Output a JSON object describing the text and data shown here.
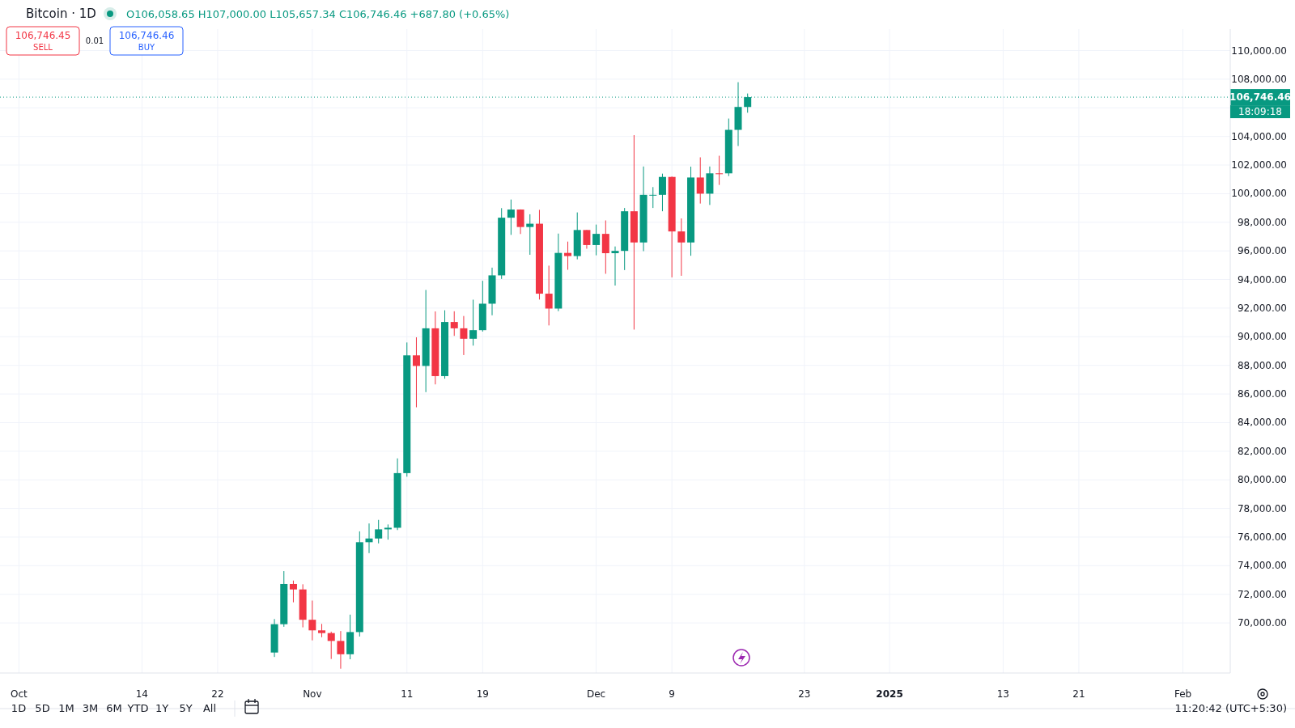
{
  "chart_data": {
    "type": "candlestick",
    "title": "Bitcoin · 1D",
    "subtitle": "O106,058.65 H107,000.00 L105,657.34 C106,746.46 +687.80 (+0.65%)",
    "x": [
      "2024-10-28",
      "2024-10-29",
      "2024-10-30",
      "2024-10-31",
      "2024-11-01",
      "2024-11-02",
      "2024-11-03",
      "2024-11-04",
      "2024-11-05",
      "2024-11-06",
      "2024-11-07",
      "2024-11-08",
      "2024-11-09",
      "2024-11-10",
      "2024-11-11",
      "2024-11-12",
      "2024-11-13",
      "2024-11-14",
      "2024-11-15",
      "2024-11-16",
      "2024-11-17",
      "2024-11-18",
      "2024-11-19",
      "2024-11-20",
      "2024-11-21",
      "2024-11-22",
      "2024-11-23",
      "2024-11-24",
      "2024-11-25",
      "2024-11-26",
      "2024-11-27",
      "2024-11-28",
      "2024-11-29",
      "2024-11-30",
      "2024-12-01",
      "2024-12-02",
      "2024-12-03",
      "2024-12-04",
      "2024-12-05",
      "2024-12-06",
      "2024-12-07",
      "2024-12-08",
      "2024-12-09",
      "2024-12-10",
      "2024-12-11",
      "2024-12-12",
      "2024-12-13",
      "2024-12-14",
      "2024-12-15",
      "2024-12-16",
      "2024-12-17"
    ],
    "ohlc": [
      [
        67930,
        70270,
        67620,
        69910
      ],
      [
        69910,
        73620,
        69730,
        72720
      ],
      [
        72720,
        72960,
        71440,
        72340
      ],
      [
        72340,
        72700,
        69690,
        70220
      ],
      [
        70220,
        71560,
        68780,
        69480
      ],
      [
        69480,
        69930,
        69000,
        69290
      ],
      [
        69290,
        69390,
        67480,
        68740
      ],
      [
        68740,
        69430,
        66800,
        67810
      ],
      [
        67810,
        70580,
        67460,
        69360
      ],
      [
        69360,
        76400,
        69050,
        75640
      ],
      [
        75640,
        76950,
        74880,
        75900
      ],
      [
        75900,
        77200,
        75560,
        76540
      ],
      [
        76540,
        76880,
        75820,
        76650
      ],
      [
        76650,
        81500,
        76490,
        80470
      ],
      [
        80470,
        89600,
        80220,
        88700
      ],
      [
        88700,
        89960,
        85070,
        87960
      ],
      [
        87960,
        93270,
        86130,
        90590
      ],
      [
        90590,
        91770,
        86670,
        87250
      ],
      [
        87250,
        91850,
        87070,
        91030
      ],
      [
        91030,
        91780,
        90060,
        90590
      ],
      [
        90590,
        91450,
        88720,
        89860
      ],
      [
        89860,
        92590,
        89380,
        90460
      ],
      [
        90460,
        93910,
        90360,
        92310
      ],
      [
        92310,
        94830,
        91500,
        94290
      ],
      [
        94290,
        98990,
        94040,
        98320
      ],
      [
        98320,
        99590,
        97120,
        98890
      ],
      [
        98890,
        98900,
        97180,
        97670
      ],
      [
        97670,
        98560,
        95730,
        97900
      ],
      [
        97900,
        98870,
        92600,
        93010
      ],
      [
        93010,
        94970,
        90790,
        91970
      ],
      [
        91970,
        97210,
        91790,
        95860
      ],
      [
        95860,
        96650,
        94680,
        95640
      ],
      [
        95640,
        98690,
        95410,
        97460
      ],
      [
        97460,
        97460,
        96150,
        96410
      ],
      [
        96410,
        97840,
        95690,
        97190
      ],
      [
        97190,
        98130,
        94400,
        95840
      ],
      [
        95840,
        96310,
        93580,
        96000
      ],
      [
        96000,
        99000,
        94660,
        98770
      ],
      [
        98770,
        104090,
        90500,
        96590
      ],
      [
        96590,
        101900,
        95980,
        99920
      ],
      [
        99920,
        100460,
        99000,
        99920
      ],
      [
        99920,
        101400,
        98770,
        101170
      ],
      [
        101170,
        101200,
        94150,
        97360
      ],
      [
        97360,
        98270,
        94260,
        96590
      ],
      [
        96590,
        101890,
        95660,
        101130
      ],
      [
        101130,
        102540,
        99310,
        100000
      ],
      [
        100000,
        101900,
        99210,
        101420
      ],
      [
        101420,
        102650,
        100610,
        101420
      ],
      [
        101420,
        105250,
        101230,
        104460
      ],
      [
        104460,
        107790,
        103330,
        106060
      ],
      [
        106058.65,
        107000,
        105657.34,
        106746.46
      ]
    ],
    "colors": [
      "#089981",
      "#089981",
      "#f23645",
      "#f23645",
      "#f23645",
      "#f23645",
      "#f23645",
      "#f23645",
      "#089981",
      "#089981",
      "#089981",
      "#089981",
      "#089981",
      "#089981",
      "#089981",
      "#f23645",
      "#089981",
      "#f23645",
      "#089981",
      "#f23645",
      "#f23645",
      "#089981",
      "#089981",
      "#089981",
      "#089981",
      "#089981",
      "#f23645",
      "#089981",
      "#f23645",
      "#f23645",
      "#089981",
      "#f23645",
      "#089981",
      "#f23645",
      "#089981",
      "#f23645",
      "#089981",
      "#089981",
      "#f23645",
      "#089981",
      "#089981",
      "#089981",
      "#f23645",
      "#f23645",
      "#089981",
      "#f23645",
      "#089981",
      "#f23645",
      "#089981",
      "#089981",
      "#089981"
    ],
    "xlim": [
      "2024-09-29",
      "2025-02-06"
    ],
    "xticks": [
      {
        "value": "2024-10-01",
        "label": "Oct"
      },
      {
        "value": "2024-10-14",
        "label": "14"
      },
      {
        "value": "2024-10-22",
        "label": "22"
      },
      {
        "value": "2024-11-01",
        "label": "Nov"
      },
      {
        "value": "2024-11-11",
        "label": "11"
      },
      {
        "value": "2024-11-19",
        "label": "19"
      },
      {
        "value": "2024-12-01",
        "label": "Dec"
      },
      {
        "value": "2024-12-09",
        "label": "9"
      },
      {
        "value": "2024-12-23",
        "label": "23"
      },
      {
        "value": "2025-01-01",
        "label": "2025"
      },
      {
        "value": "2025-01-13",
        "label": "13"
      },
      {
        "value": "2025-01-21",
        "label": "21"
      },
      {
        "value": "2025-02-01",
        "label": "Feb"
      }
    ],
    "ylim": [
      66500,
      111500
    ],
    "yticks": [
      {
        "value": 70000,
        "label": "70,000.00"
      },
      {
        "value": 72000,
        "label": "72,000.00"
      },
      {
        "value": 74000,
        "label": "74,000.00"
      },
      {
        "value": 76000,
        "label": "76,000.00"
      },
      {
        "value": 78000,
        "label": "78,000.00"
      },
      {
        "value": 80000,
        "label": "80,000.00"
      },
      {
        "value": 82000,
        "label": "82,000.00"
      },
      {
        "value": 84000,
        "label": "84,000.00"
      },
      {
        "value": 86000,
        "label": "86,000.00"
      },
      {
        "value": 88000,
        "label": "88,000.00"
      },
      {
        "value": 90000,
        "label": "90,000.00"
      },
      {
        "value": 92000,
        "label": "92,000.00"
      },
      {
        "value": 94000,
        "label": "94,000.00"
      },
      {
        "value": 96000,
        "label": "96,000.00"
      },
      {
        "value": 98000,
        "label": "98,000.00"
      },
      {
        "value": 100000,
        "label": "100,000.00"
      },
      {
        "value": 102000,
        "label": "102,000.00"
      },
      {
        "value": 104000,
        "label": "104,000.00"
      },
      {
        "value": 106000,
        "label": null
      },
      {
        "value": 108000,
        "label": "108,000.00"
      },
      {
        "value": 110000,
        "label": "110,000.00"
      }
    ],
    "grid": true,
    "ref_lines": [
      {
        "axis": "y",
        "value": 106746.46,
        "label": "106,746.46",
        "color": "#089981",
        "line_style": "dotted"
      }
    ],
    "annotations": [
      "106,746.45",
      "SELL",
      "0.01",
      "106,746.46",
      "BUY",
      "18:09:18",
      "1D",
      "5D",
      "1M",
      "3M",
      "6M",
      "YTD",
      "1Y",
      "5Y",
      "All",
      "11:20:42 (UTC+5:30)"
    ]
  }
}
